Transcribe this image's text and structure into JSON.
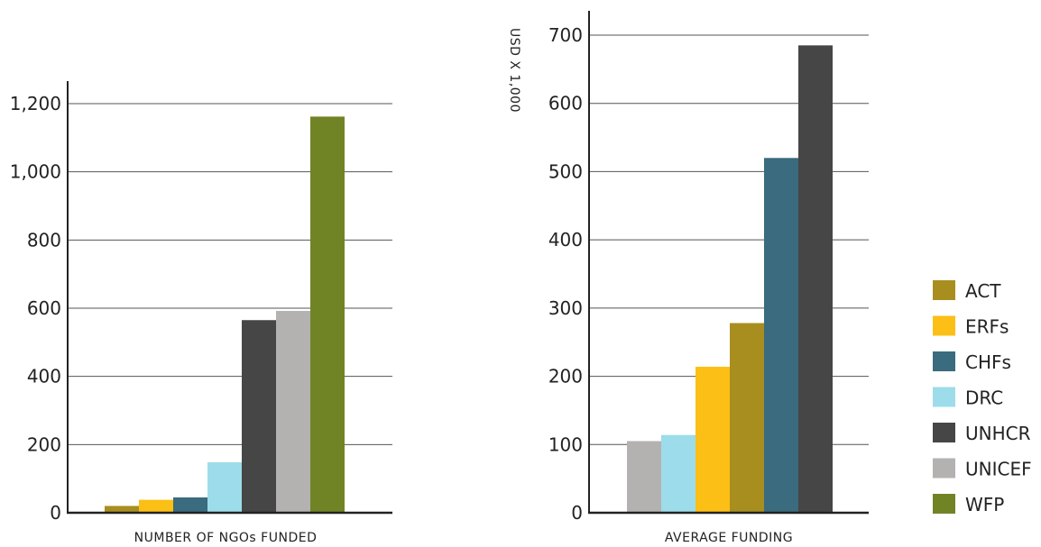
{
  "colors": {
    "ACT": "#A88E1F",
    "ERFs": "#FBBF16",
    "CHFs": "#3A6B7E",
    "DRC": "#9DDCEA",
    "UNHCR": "#464646",
    "UNICEF": "#B3B2B1",
    "WFP": "#708426"
  },
  "legend": [
    "ACT",
    "ERFs",
    "CHFs",
    "DRC",
    "UNHCR",
    "UNICEF",
    "WFP"
  ],
  "chart_data": [
    {
      "type": "bar",
      "title": "",
      "xlabel": "NUMBER OF NGOs FUNDED",
      "ylabel": "",
      "categories": [
        "ACT",
        "ERFs",
        "CHFs",
        "DRC",
        "UNHCR",
        "UNICEF",
        "WFP"
      ],
      "values": [
        20,
        38,
        45,
        148,
        565,
        592,
        1162
      ],
      "ylim": [
        0,
        1200
      ],
      "yticks": [
        0,
        200,
        400,
        600,
        800,
        1000,
        1200
      ],
      "ytick_labels": [
        "0",
        "200",
        "400",
        "600",
        "800",
        "1,000",
        "1,200"
      ],
      "grid": true
    },
    {
      "type": "bar",
      "title": "",
      "xlabel": "AVERAGE FUNDING",
      "ylabel": "USD X 1,000",
      "categories": [
        "UNICEF",
        "DRC",
        "ERFs",
        "ACT",
        "CHFs",
        "UNHCR"
      ],
      "values": [
        105,
        114,
        214,
        278,
        520,
        685
      ],
      "ylim": [
        0,
        700
      ],
      "yticks": [
        0,
        100,
        200,
        300,
        400,
        500,
        600,
        700
      ],
      "ytick_labels": [
        "0",
        "100",
        "200",
        "300",
        "400",
        "500",
        "600",
        "700"
      ],
      "grid": true
    }
  ]
}
